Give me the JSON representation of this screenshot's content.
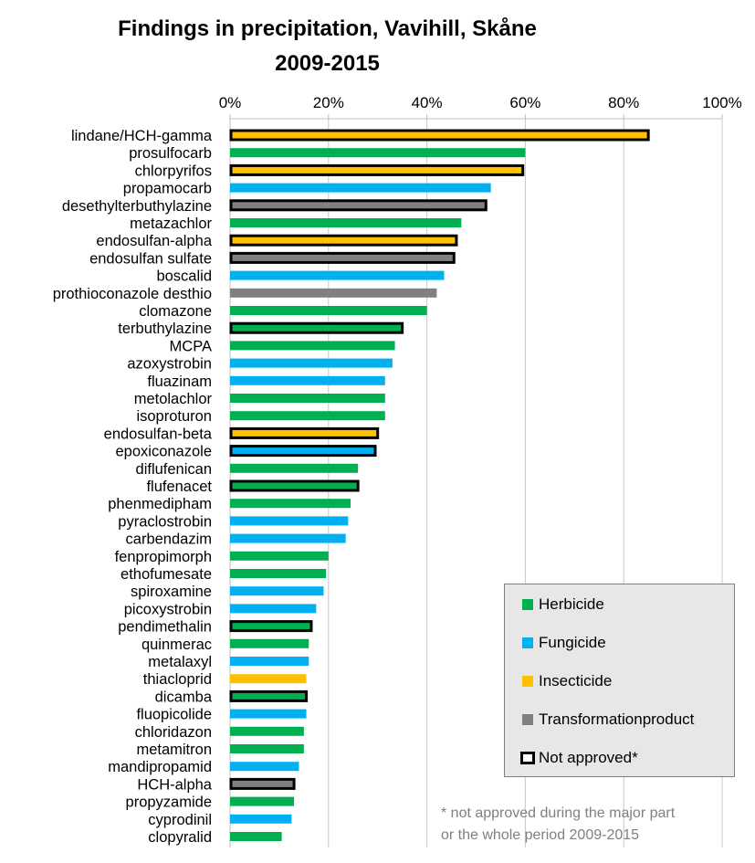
{
  "chart_data": {
    "type": "bar",
    "orientation": "horizontal",
    "title": "Findings in precipitation, Vavihill, Skåne",
    "subtitle": "2009-2015",
    "xlim": [
      0,
      100
    ],
    "x_ticks": [
      "0%",
      "20%",
      "40%",
      "60%",
      "80%",
      "100%"
    ],
    "grid": true,
    "legend_position": "bottom-right",
    "colors": {
      "Herbicide": "#00b050",
      "Fungicide": "#00b0f0",
      "Insecticide": "#ffc000",
      "Transformationproduct": "#808080"
    },
    "bars": [
      {
        "label": "lindane/HCH-gamma",
        "value": 85,
        "category": "Insecticide",
        "not_approved": true
      },
      {
        "label": "prosulfocarb",
        "value": 60,
        "category": "Herbicide",
        "not_approved": false
      },
      {
        "label": "chlorpyrifos",
        "value": 59.5,
        "category": "Insecticide",
        "not_approved": true
      },
      {
        "label": "propamocarb",
        "value": 53,
        "category": "Fungicide",
        "not_approved": false
      },
      {
        "label": "desethylterbuthylazine",
        "value": 52,
        "category": "Transformationproduct",
        "not_approved": true
      },
      {
        "label": "metazachlor",
        "value": 47,
        "category": "Herbicide",
        "not_approved": false
      },
      {
        "label": "endosulfan-alpha",
        "value": 46,
        "category": "Insecticide",
        "not_approved": true
      },
      {
        "label": "endosulfan sulfate",
        "value": 45.5,
        "category": "Transformationproduct",
        "not_approved": true
      },
      {
        "label": "boscalid",
        "value": 43.5,
        "category": "Fungicide",
        "not_approved": false
      },
      {
        "label": "prothioconazole desthio",
        "value": 42,
        "category": "Transformationproduct",
        "not_approved": false
      },
      {
        "label": "clomazone",
        "value": 40,
        "category": "Herbicide",
        "not_approved": false
      },
      {
        "label": "terbuthylazine",
        "value": 35,
        "category": "Herbicide",
        "not_approved": true
      },
      {
        "label": "MCPA",
        "value": 33.5,
        "category": "Herbicide",
        "not_approved": false
      },
      {
        "label": "azoxystrobin",
        "value": 33,
        "category": "Fungicide",
        "not_approved": false
      },
      {
        "label": "fluazinam",
        "value": 31.5,
        "category": "Fungicide",
        "not_approved": false
      },
      {
        "label": "metolachlor",
        "value": 31.5,
        "category": "Herbicide",
        "not_approved": false
      },
      {
        "label": "isoproturon",
        "value": 31.5,
        "category": "Herbicide",
        "not_approved": false
      },
      {
        "label": "endosulfan-beta",
        "value": 30,
        "category": "Insecticide",
        "not_approved": true
      },
      {
        "label": "epoxiconazole",
        "value": 29.5,
        "category": "Fungicide",
        "not_approved": true
      },
      {
        "label": "diflufenican",
        "value": 26,
        "category": "Herbicide",
        "not_approved": false
      },
      {
        "label": "flufenacet",
        "value": 26,
        "category": "Herbicide",
        "not_approved": true
      },
      {
        "label": "phenmedipham",
        "value": 24.5,
        "category": "Herbicide",
        "not_approved": false
      },
      {
        "label": "pyraclostrobin",
        "value": 24,
        "category": "Fungicide",
        "not_approved": false
      },
      {
        "label": "carbendazim",
        "value": 23.5,
        "category": "Fungicide",
        "not_approved": false
      },
      {
        "label": "fenpropimorph",
        "value": 20,
        "category": "Herbicide",
        "not_approved": false
      },
      {
        "label": "ethofumesate",
        "value": 19.5,
        "category": "Herbicide",
        "not_approved": false
      },
      {
        "label": "spiroxamine",
        "value": 19,
        "category": "Fungicide",
        "not_approved": false
      },
      {
        "label": "picoxystrobin",
        "value": 17.5,
        "category": "Fungicide",
        "not_approved": false
      },
      {
        "label": "pendimethalin",
        "value": 16.5,
        "category": "Herbicide",
        "not_approved": true
      },
      {
        "label": "quinmerac",
        "value": 16,
        "category": "Herbicide",
        "not_approved": false
      },
      {
        "label": "metalaxyl",
        "value": 16,
        "category": "Fungicide",
        "not_approved": false
      },
      {
        "label": "thiacloprid",
        "value": 15.5,
        "category": "Insecticide",
        "not_approved": false
      },
      {
        "label": "dicamba",
        "value": 15.5,
        "category": "Herbicide",
        "not_approved": true
      },
      {
        "label": "fluopicolide",
        "value": 15.5,
        "category": "Fungicide",
        "not_approved": false
      },
      {
        "label": "chloridazon",
        "value": 15,
        "category": "Herbicide",
        "not_approved": false
      },
      {
        "label": "metamitron",
        "value": 15,
        "category": "Herbicide",
        "not_approved": false
      },
      {
        "label": "mandipropamid",
        "value": 14,
        "category": "Fungicide",
        "not_approved": false
      },
      {
        "label": "HCH-alpha",
        "value": 13,
        "category": "Transformationproduct",
        "not_approved": true
      },
      {
        "label": "propyzamide",
        "value": 13,
        "category": "Herbicide",
        "not_approved": false
      },
      {
        "label": "cyprodinil",
        "value": 12.5,
        "category": "Fungicide",
        "not_approved": false
      },
      {
        "label": "clopyralid",
        "value": 10.5,
        "category": "Herbicide",
        "not_approved": false
      }
    ],
    "legend": [
      {
        "label": "Herbicide",
        "category": "Herbicide"
      },
      {
        "label": "Fungicide",
        "category": "Fungicide"
      },
      {
        "label": "Insecticide",
        "category": "Insecticide"
      },
      {
        "label": "Transformationproduct",
        "category": "Transformationproduct"
      },
      {
        "label": "Not approved*",
        "category": "not_approved"
      }
    ],
    "footnote": [
      "* not approved during the major part",
      "or the whole period 2009-2015"
    ]
  }
}
